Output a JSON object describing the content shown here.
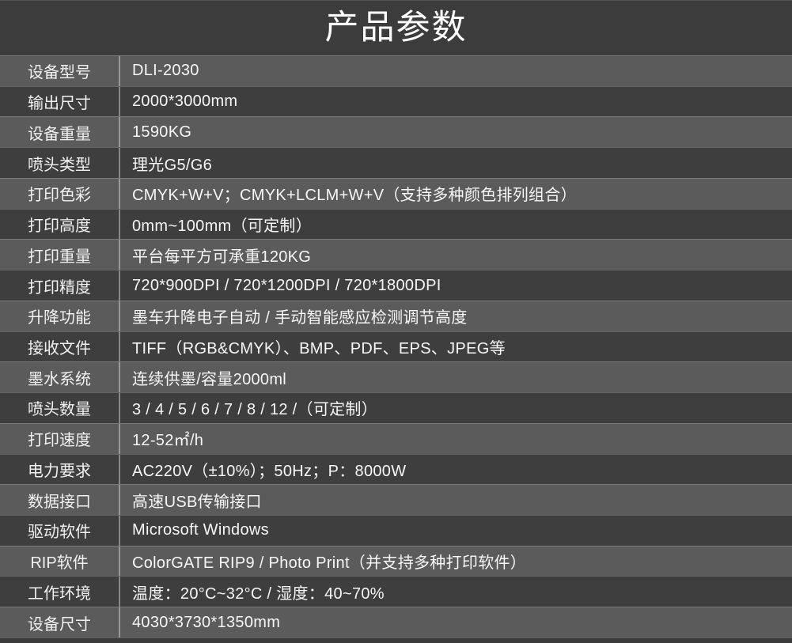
{
  "header": {
    "title": "产品参数"
  },
  "colors": {
    "row_light": "#5b5b5b",
    "row_dark": "#3e3e3e",
    "header_bg": "#3c3c3c",
    "text": "#f7f7f7",
    "divider": "#8f8f8f"
  },
  "table": {
    "rows": [
      {
        "label": "设备型号",
        "value": "DLI-2030"
      },
      {
        "label": "输出尺寸",
        "value": "2000*3000mm"
      },
      {
        "label": "设备重量",
        "value": "1590KG"
      },
      {
        "label": "喷头类型",
        "value": "理光G5/G6"
      },
      {
        "label": "打印色彩",
        "value": "CMYK+W+V；CMYK+LCLM+W+V（支持多种颜色排列组合）"
      },
      {
        "label": "打印高度",
        "value": "0mm~100mm（可定制）"
      },
      {
        "label": "打印重量",
        "value": "平台每平方可承重120KG"
      },
      {
        "label": "打印精度",
        "value": "720*900DPI / 720*1200DPI / 720*1800DPI"
      },
      {
        "label": "升降功能",
        "value": "墨车升降电子自动 / 手动智能感应检测调节高度"
      },
      {
        "label": "接收文件",
        "value": "TIFF（RGB&CMYK）、BMP、PDF、EPS、JPEG等"
      },
      {
        "label": "墨水系统",
        "value": "连续供墨/容量2000ml"
      },
      {
        "label": "喷头数量",
        "value": "3 / 4 / 5 / 6 / 7 / 8 / 12 /（可定制）"
      },
      {
        "label": "打印速度",
        "value": "12-52㎡/h"
      },
      {
        "label": "电力要求",
        "value": "AC220V（±10%）；50Hz；P：8000W"
      },
      {
        "label": "数据接口",
        "value": "高速USB传输接口"
      },
      {
        "label": "驱动软件",
        "value": "Microsoft Windows"
      },
      {
        "label": "RIP软件",
        "value": "ColorGATE RIP9 / Photo Print（并支持多种打印软件）"
      },
      {
        "label": "工作环境",
        "value": "温度：20°C~32°C / 湿度：40~70%"
      },
      {
        "label": "设备尺寸",
        "value": "4030*3730*1350mm"
      }
    ]
  }
}
